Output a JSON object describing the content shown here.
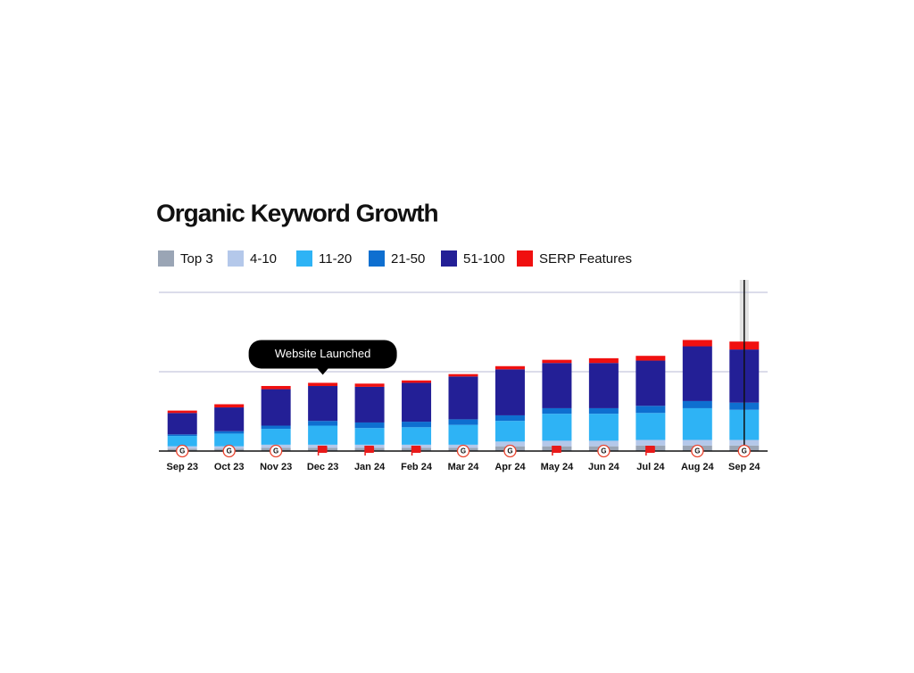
{
  "chart_data": {
    "type": "stacked_bar",
    "title": "Organic Keyword Growth",
    "categories": [
      "Sep 23",
      "Oct 23",
      "Nov 23",
      "Dec 23",
      "Jan 24",
      "Feb 24",
      "Mar 24",
      "Apr 24",
      "May 24",
      "Jun 24",
      "Jul 24",
      "Aug 24",
      "Sep 24"
    ],
    "series": [
      {
        "name": "Top 3",
        "color": "#9aa5b5",
        "values": [
          3,
          3,
          4,
          4,
          4,
          4,
          4,
          6,
          6,
          6,
          7,
          7,
          7
        ]
      },
      {
        "name": "4-10",
        "color": "#b4c8ea",
        "values": [
          3,
          3,
          4,
          4,
          4,
          4,
          4,
          6,
          7,
          7,
          7,
          7,
          7
        ]
      },
      {
        "name": "11-20",
        "color": "#2eb3f5",
        "values": [
          13,
          16,
          20,
          24,
          21,
          22,
          25,
          26,
          34,
          34,
          34,
          40,
          38
        ]
      },
      {
        "name": "21-50",
        "color": "#0e6fd0",
        "values": [
          2,
          3,
          4,
          6,
          7,
          7,
          7,
          7,
          7,
          7,
          9,
          9,
          9
        ]
      },
      {
        "name": "51-100",
        "color": "#231f96",
        "values": [
          27,
          30,
          46,
          44,
          45,
          49,
          54,
          58,
          57,
          57,
          57,
          69,
          67
        ]
      },
      {
        "name": "SERP Features",
        "color": "#f01010",
        "values": [
          3,
          4,
          4,
          4,
          4,
          3,
          3,
          4,
          4,
          6,
          6,
          8,
          10
        ]
      }
    ],
    "event_markers": [
      "google",
      "google",
      "google",
      "flag",
      "flag",
      "flag",
      "google",
      "google",
      "flag",
      "google",
      "flag",
      "google",
      "google"
    ],
    "annotation": {
      "text": "Website Launched",
      "category": 3
    },
    "ylim": [
      0,
      200
    ],
    "yticks": [
      0,
      100,
      200
    ],
    "grid": true
  }
}
